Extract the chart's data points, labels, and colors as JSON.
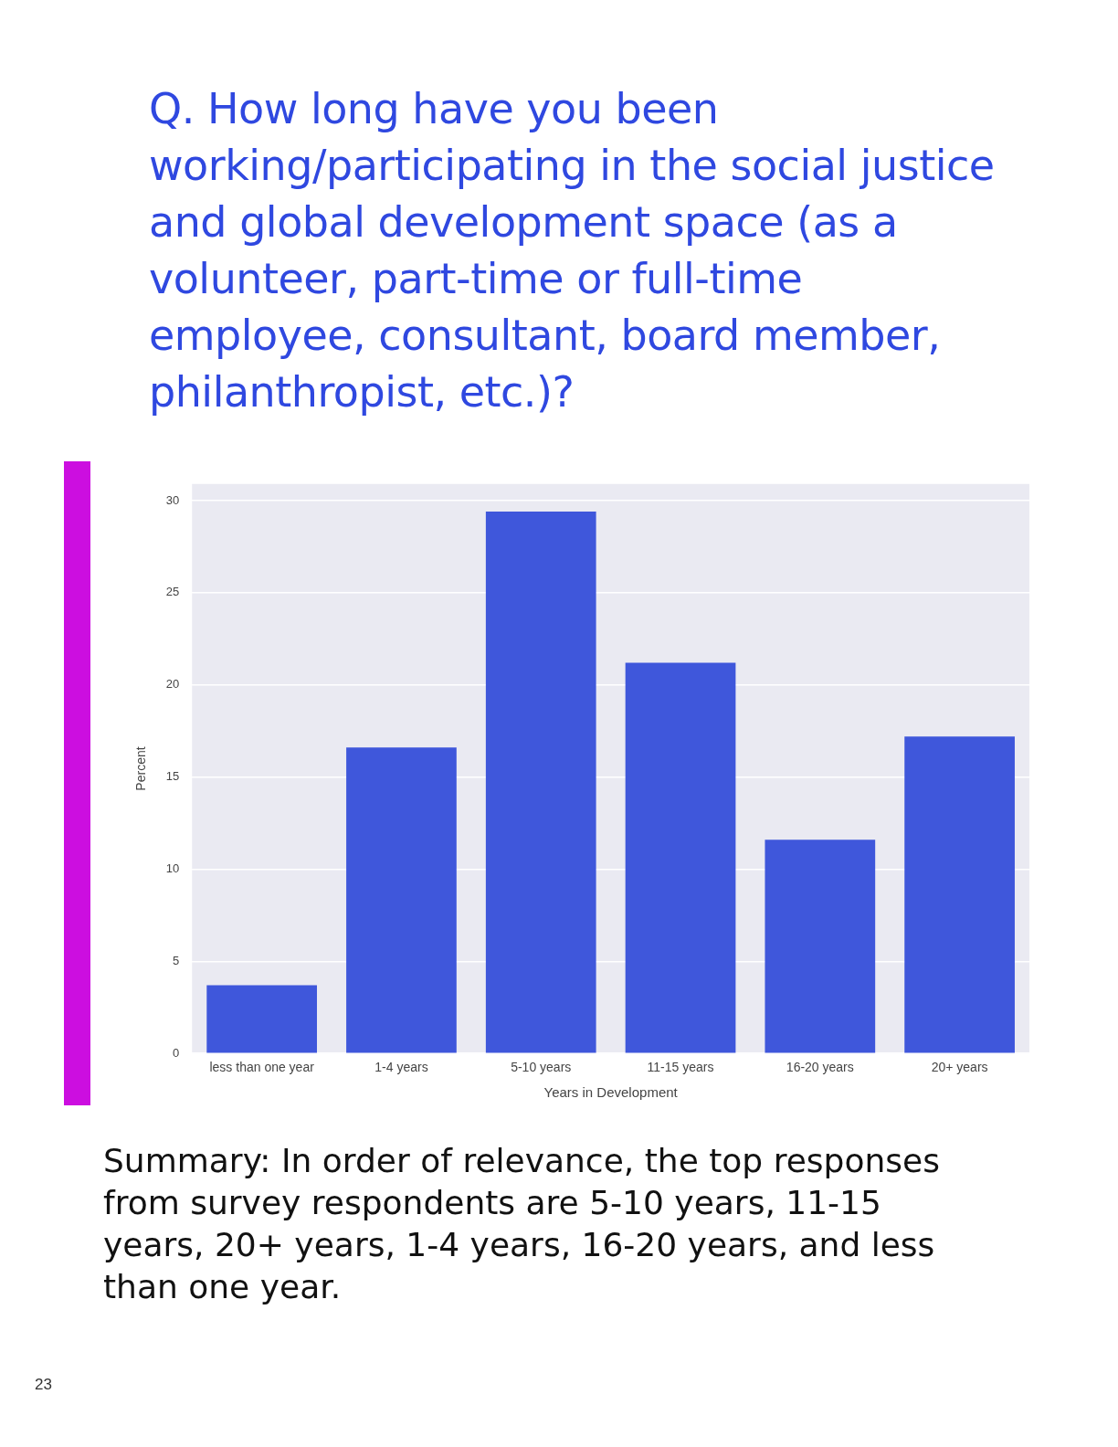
{
  "chart_data": {
    "type": "bar",
    "title": "Q. How long have you been working/participating in the social justice and global development space (as a volunteer, part-time or full-time employee, consultant, board member, philanthropist, etc.)?",
    "xlabel": "Years in Development",
    "ylabel": "Percent",
    "categories": [
      "less than one year",
      "1-4 years",
      "5-10 years",
      "11-15 years",
      "16-20 years",
      "20+ years"
    ],
    "values": [
      3.7,
      16.6,
      29.4,
      21.2,
      11.6,
      17.2
    ],
    "color": "#3f57db",
    "ylim": [
      0,
      30.9
    ],
    "yticks": [
      0,
      5,
      10,
      15,
      20,
      25,
      30
    ],
    "grid": "y",
    "legend": false,
    "annotations": [
      "Summary: In order of relevance, the top responses from survey respondents are 5-10 years, 11-15 years, 20+ years, 1-4 years, 16-20 years, and less than one year.",
      "23"
    ]
  }
}
